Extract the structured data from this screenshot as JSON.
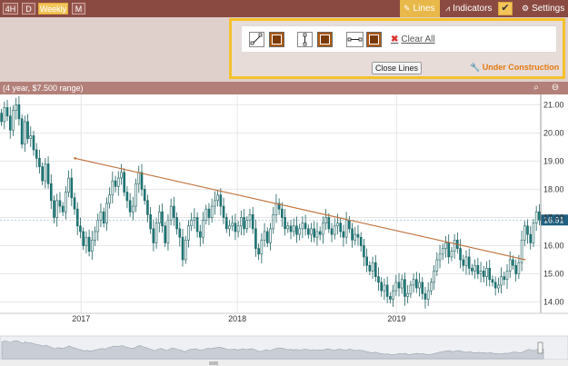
{
  "toolbar": {
    "periods": [
      {
        "label": "4H",
        "active": false
      },
      {
        "label": "D",
        "active": false
      },
      {
        "label": "Weekly",
        "active": true
      },
      {
        "label": "M",
        "active": false
      }
    ],
    "lines_label": "Lines",
    "indicators_label": "Indicators",
    "check_mark": "✔",
    "settings_label": "Settings"
  },
  "drawing_tools": {
    "clear_all_label": "Clear All",
    "close_lines_label": "Close Lines",
    "under_construction_label": "Under Construction"
  },
  "chart_info": {
    "range_label": "(4 year, $7.500 range)"
  },
  "chart_data": {
    "type": "candlestick",
    "x_ticks": [
      "2017",
      "2018",
      "2019"
    ],
    "y_ticks": [
      "14.00",
      "15.00",
      "16.00",
      "17.00",
      "18.00",
      "19.00",
      "20.00",
      "21.00"
    ],
    "ylim": [
      13.6,
      21.3
    ],
    "last_price": "16.91",
    "colors": {
      "up": "#ffffff",
      "down": "#1b7d7d",
      "trendline": "#c0703a",
      "last_price_box": "#1f5f7f"
    },
    "trendline": {
      "start": {
        "date": "2016-12-19",
        "value": 19.1
      },
      "end": {
        "date": "2019-11-04",
        "value": 15.5
      }
    },
    "weekly_close": [
      20.4,
      20.9,
      20.6,
      20.1,
      20.8,
      21.0,
      20.5,
      19.6,
      20.4,
      19.8,
      19.9,
      19.4,
      19.1,
      18.8,
      18.3,
      18.9,
      18.2,
      17.6,
      17.0,
      17.6,
      17.4,
      17.2,
      17.9,
      18.4,
      17.7,
      17.3,
      16.7,
      16.5,
      16.0,
      16.3,
      15.8,
      16.2,
      16.5,
      16.9,
      17.2,
      16.8,
      17.5,
      17.8,
      18.3,
      18.1,
      18.4,
      18.6,
      17.9,
      17.6,
      17.2,
      17.4,
      18.2,
      18.6,
      18.0,
      17.6,
      17.1,
      16.6,
      16.1,
      16.8,
      17.2,
      16.7,
      16.1,
      16.9,
      17.4,
      17.0,
      16.6,
      16.3,
      15.5,
      16.2,
      16.7,
      16.9,
      17.0,
      16.5,
      16.3,
      16.9,
      17.3,
      17.0,
      17.4,
      17.6,
      17.8,
      17.4,
      17.0,
      16.6,
      16.7,
      16.8,
      16.5,
      16.7,
      17.0,
      16.6,
      16.9,
      17.1,
      16.6,
      15.9,
      15.7,
      16.2,
      16.5,
      16.1,
      16.6,
      17.1,
      17.5,
      17.3,
      17.0,
      16.6,
      16.7,
      16.5,
      16.7,
      16.4,
      16.6,
      16.8,
      16.6,
      16.4,
      16.6,
      16.3,
      16.5,
      16.4,
      16.8,
      17.0,
      16.6,
      16.4,
      16.7,
      16.8,
      16.5,
      16.3,
      16.9,
      16.6,
      16.2,
      16.4,
      16.3,
      16.0,
      15.6,
      15.3,
      15.1,
      15.4,
      14.9,
      14.7,
      14.4,
      14.6,
      14.2,
      14.1,
      14.4,
      14.7,
      14.5,
      14.8,
      14.2,
      14.3,
      14.6,
      14.8,
      14.5,
      14.7,
      14.3,
      14.1,
      14.4,
      14.7,
      15.1,
      15.5,
      15.7,
      15.9,
      16.1,
      15.6,
      15.8,
      16.2,
      15.9,
      15.5,
      15.3,
      15.6,
      15.2,
      15.1,
      15.3,
      15.0,
      15.1,
      14.9,
      15.2,
      14.8,
      14.7,
      14.5,
      14.6,
      14.9,
      14.8,
      15.1,
      15.5,
      15.3,
      15.0,
      15.4,
      16.2,
      16.7,
      16.4,
      16.1,
      16.8,
      17.2,
      16.9
    ]
  }
}
